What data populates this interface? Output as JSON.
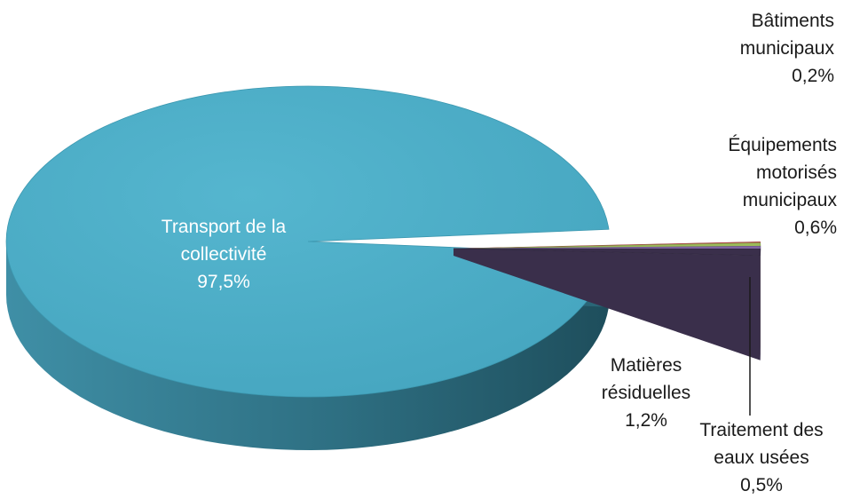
{
  "chart_data": {
    "type": "pie",
    "style": "3d-exploded",
    "slices": [
      {
        "name": "Transport de la collectivité",
        "label_lines": [
          "Transport de la",
          "collectivité"
        ],
        "value": 97.5,
        "value_label": "97,5%",
        "color": "#4BACC6"
      },
      {
        "name": "Bâtiments municipaux",
        "label_lines": [
          "Bâtiments",
          "municipaux"
        ],
        "value": 0.2,
        "value_label": "0,2%",
        "color": "#C0504D"
      },
      {
        "name": "Équipements motorisés municipaux",
        "label_lines": [
          "Équipements",
          "motorisés",
          "municipaux"
        ],
        "value": 0.6,
        "value_label": "0,6%",
        "color": "#9BBB59"
      },
      {
        "name": "Traitement des eaux usées",
        "label_lines": [
          "Traitement des",
          "eaux usées"
        ],
        "value": 0.5,
        "value_label": "0,5%",
        "color": "#8064A2"
      },
      {
        "name": "Matières résiduelles",
        "label_lines": [
          "Matières",
          "résiduelles"
        ],
        "value": 1.2,
        "value_label": "1,2%",
        "color": "#3A2F4B"
      }
    ],
    "legend": "none"
  }
}
